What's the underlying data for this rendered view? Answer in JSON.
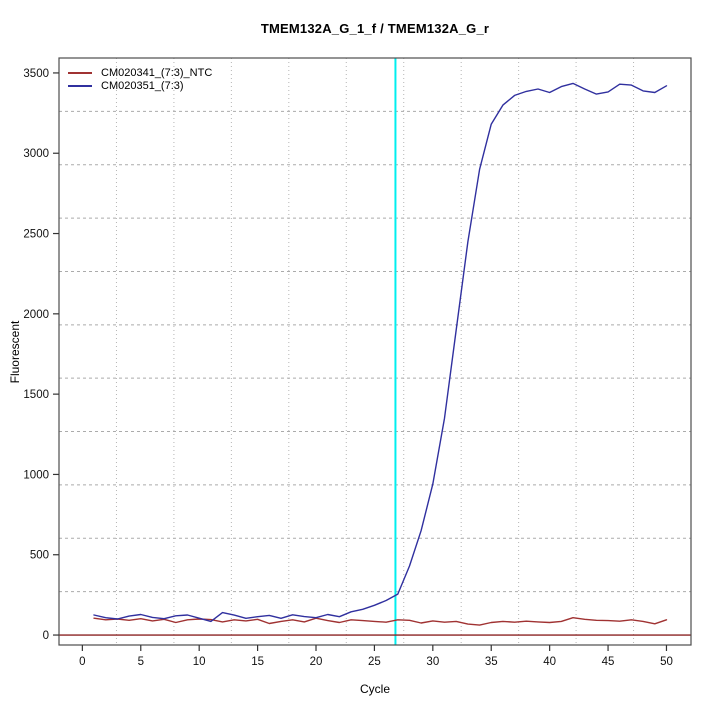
{
  "title": "TMEM132A_G_1_f / TMEM132A_G_r",
  "axes": {
    "x_label": "Cycle",
    "y_label": "Fluorescent",
    "x_ticks": [
      0,
      5,
      10,
      15,
      20,
      25,
      30,
      35,
      40,
      45,
      50
    ],
    "y_ticks": [
      0,
      500,
      1000,
      1500,
      2000,
      2500,
      3000,
      3500
    ]
  },
  "legend": {
    "items": [
      {
        "label": "CM020341_(7:3)_NTC",
        "color": "#A03232"
      },
      {
        "label": "CM020351_(7:3)",
        "color": "#30309F"
      }
    ]
  },
  "colors": {
    "grid_vertical": "#B5B5B5",
    "grid_horizontal": "#ABABAB",
    "box": "#4D4D4D",
    "tick": "#333333",
    "tick_label": "#111111",
    "ct_marker": "#00EEEE",
    "zero_line": "#8B2323"
  },
  "chart_data": {
    "type": "line",
    "title": "TMEM132A_G_1_f / TMEM132A_G_r",
    "xlabel": "Cycle",
    "ylabel": "Fluorescent",
    "xlim": [
      -2,
      52.1
    ],
    "ylim": [
      -62,
      3593
    ],
    "grid": "dotted, 11x11 cells",
    "legend_position": "top-left",
    "ct_marker_cycle": 26.8,
    "zero_line_y": 0,
    "x": [
      1,
      2,
      3,
      4,
      5,
      6,
      7,
      8,
      9,
      10,
      11,
      12,
      13,
      14,
      15,
      16,
      17,
      18,
      19,
      20,
      21,
      22,
      23,
      24,
      25,
      26,
      27,
      28,
      29,
      30,
      31,
      32,
      33,
      34,
      35,
      36,
      37,
      38,
      39,
      40,
      41,
      42,
      43,
      44,
      45,
      46,
      47,
      48,
      49,
      50
    ],
    "series": [
      {
        "name": "CM020341_(7:3)_NTC",
        "color": "#A03232",
        "values": [
          105,
          95,
          100,
          92,
          102,
          88,
          98,
          78,
          95,
          100,
          96,
          82,
          95,
          88,
          98,
          72,
          85,
          95,
          82,
          105,
          90,
          78,
          95,
          90,
          85,
          80,
          95,
          92,
          75,
          88,
          80,
          85,
          68,
          62,
          78,
          85,
          80,
          86,
          82,
          78,
          85,
          108,
          98,
          92,
          90,
          86,
          95,
          85,
          70,
          95
        ]
      },
      {
        "name": "CM020351_(7:3)",
        "color": "#30309F",
        "values": [
          125,
          108,
          100,
          118,
          128,
          110,
          102,
          120,
          125,
          105,
          85,
          140,
          124,
          104,
          114,
          122,
          104,
          126,
          115,
          108,
          128,
          114,
          145,
          160,
          185,
          215,
          255,
          430,
          650,
          940,
          1350,
          1900,
          2450,
          2900,
          3180,
          3300,
          3360,
          3385,
          3400,
          3378,
          3415,
          3435,
          3400,
          3368,
          3382,
          3430,
          3424,
          3388,
          3378,
          3420
        ]
      }
    ]
  }
}
